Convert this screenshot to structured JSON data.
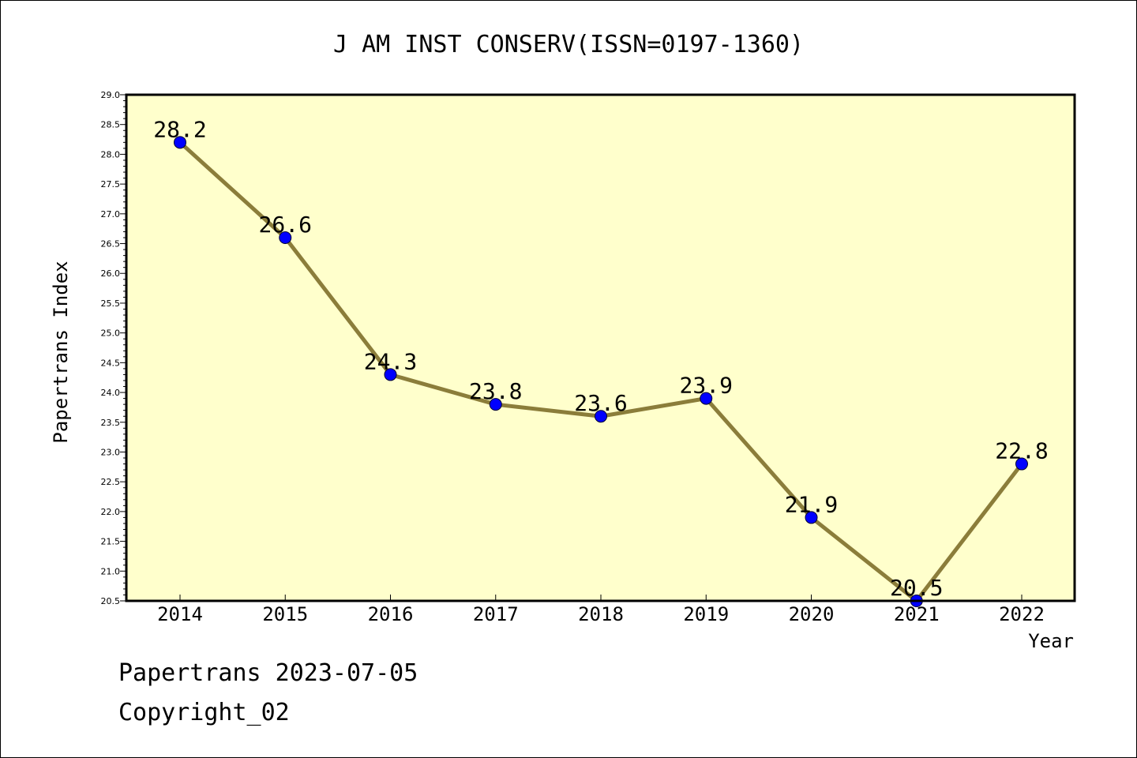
{
  "chart_data": {
    "type": "line",
    "title": "J AM INST CONSERV(ISSN=0197-1360)",
    "xlabel": "Year",
    "ylabel": "Papertrans Index",
    "categories": [
      "2014",
      "2015",
      "2016",
      "2017",
      "2018",
      "2019",
      "2020",
      "2021",
      "2022"
    ],
    "values": [
      28.2,
      26.6,
      24.3,
      23.8,
      23.6,
      23.9,
      21.9,
      20.5,
      22.8
    ],
    "data_labels": [
      "28.2",
      "26.6",
      "24.3",
      "23.8",
      "23.6",
      "23.9",
      "21.9",
      "20.5",
      "22.8"
    ],
    "ylim": [
      20.5,
      29.0
    ],
    "yticks": [
      "20.5",
      "21.0",
      "21.5",
      "22.0",
      "22.5",
      "23.0",
      "23.5",
      "24.0",
      "24.5",
      "25.0",
      "25.5",
      "26.0",
      "26.5",
      "27.0",
      "27.5",
      "28.0",
      "28.5",
      "29.0"
    ],
    "grid": false,
    "colors": {
      "plot_background": "#ffffcc",
      "line": "#8b7d3a",
      "marker": "#0000ff"
    }
  },
  "footer": {
    "line1": "Papertrans 2023-07-05",
    "line2": "Copyright_02"
  }
}
